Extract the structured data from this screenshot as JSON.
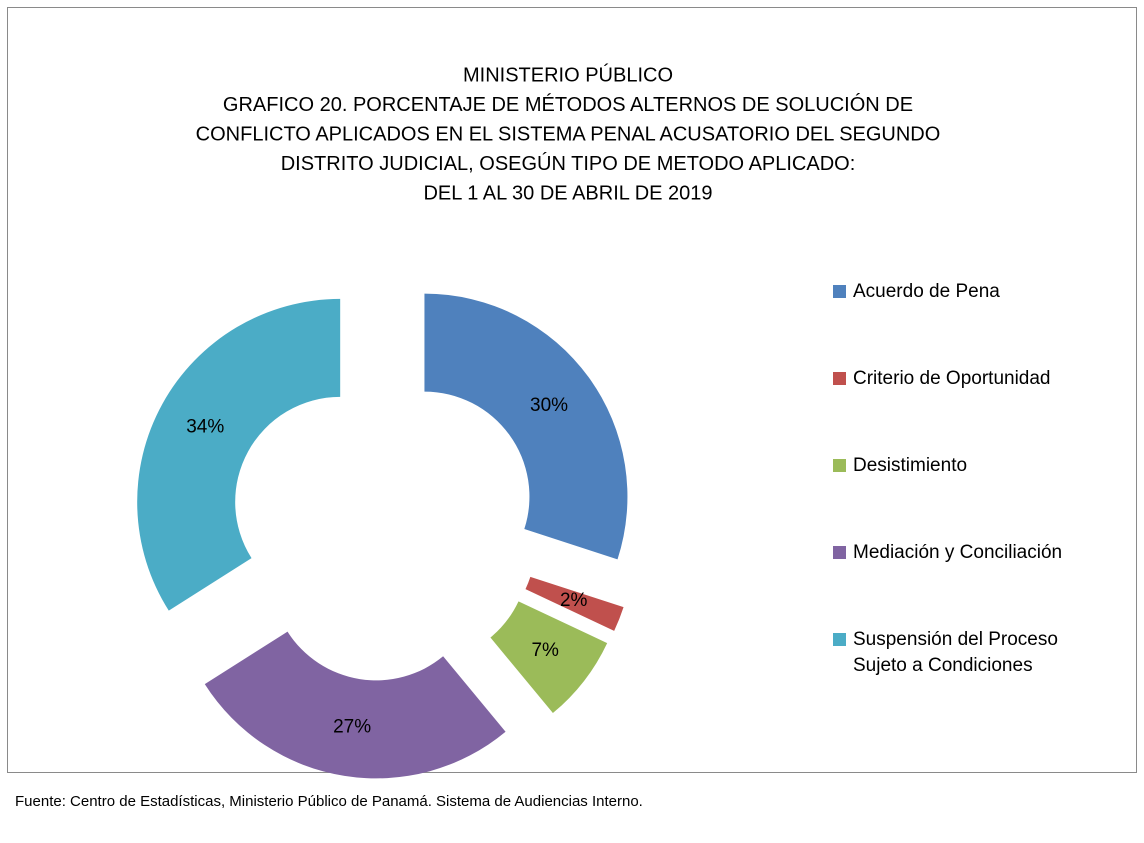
{
  "chart_data": {
    "type": "pie",
    "title": [
      "MINISTERIO PÚBLICO",
      "GRAFICO 20. PORCENTAJE DE MÉTODOS ALTERNOS DE SOLUCIÓN DE",
      "CONFLICTO APLICADOS EN EL SISTEMA PENAL ACUSATORIO DEL SEGUNDO",
      "DISTRITO JUDICIAL, OSEGÚN TIPO DE METODO APLICADO:",
      "DEL 1 AL 30 DE ABRIL DE 2019"
    ],
    "categories": [
      "Acuerdo de Pena",
      "Criterio de Oportunidad",
      "Desistimiento",
      "Mediación y Conciliación",
      "Suspensión del Proceso Sujeto a Condiciones"
    ],
    "values": [
      30,
      2,
      7,
      27,
      34
    ],
    "value_labels": [
      "30%",
      "2%",
      "7%",
      "27%",
      "34%"
    ],
    "colors": [
      "#4f81bd",
      "#c0504d",
      "#9bbb59",
      "#8064a2",
      "#4bacc6"
    ],
    "legend": "right",
    "source": "Fuente: Centro de Estadísticas, Ministerio Público de Panamá. Sistema de Audiencias Interno."
  }
}
